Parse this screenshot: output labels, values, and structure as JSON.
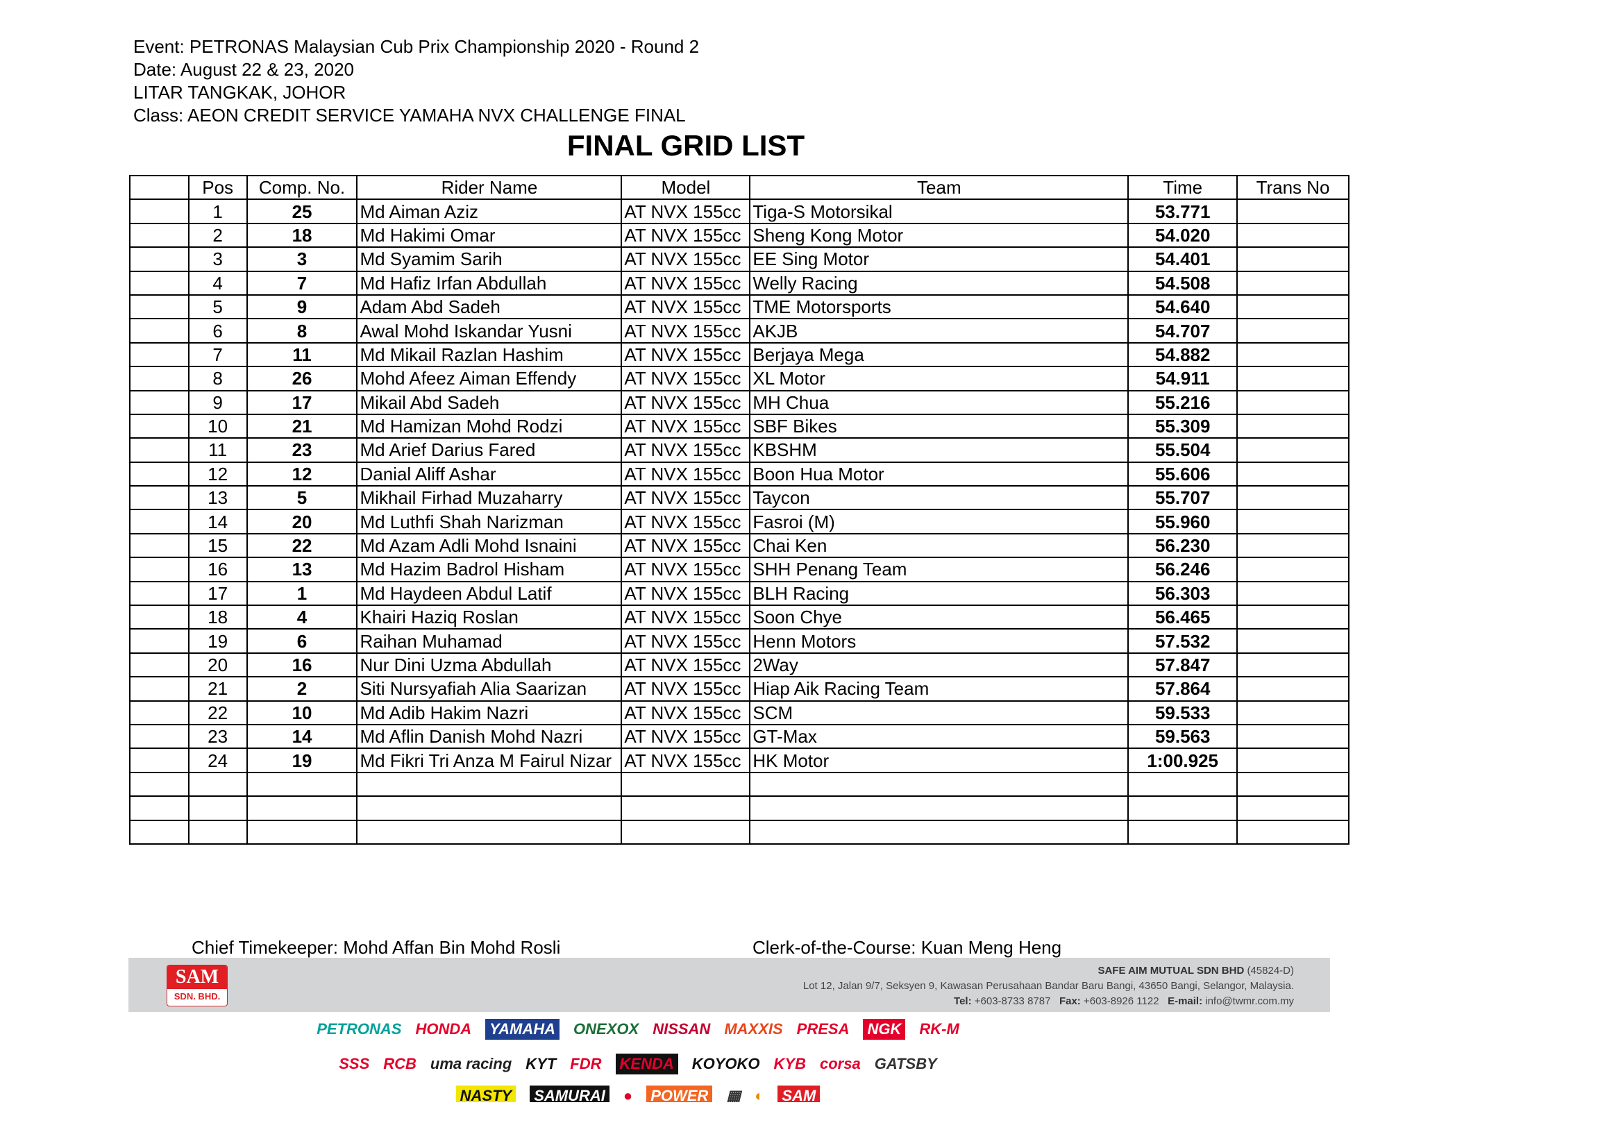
{
  "header": {
    "event": "Event: PETRONAS Malaysian Cub Prix Championship 2020 - Round 2",
    "date": "Date: August 22 & 23, 2020",
    "venue": "LITAR TANGKAK, JOHOR",
    "class": "Class: AEON CREDIT SERVICE YAMAHA NVX CHALLENGE FINAL",
    "title": "FINAL GRID LIST"
  },
  "table": {
    "columns": [
      "",
      "Pos",
      "Comp. No.",
      "Rider Name",
      "Model",
      "Team",
      "Time",
      "Trans No"
    ],
    "rows": [
      [
        "1",
        "25",
        "Md Aiman Aziz",
        "AT NVX 155cc",
        "Tiga-S Motorsikal",
        "53.771"
      ],
      [
        "2",
        "18",
        "Md Hakimi Omar",
        "AT NVX 155cc",
        "Sheng Kong Motor",
        "54.020"
      ],
      [
        "3",
        "3",
        "Md Syamim Sarih",
        "AT NVX 155cc",
        "EE Sing Motor",
        "54.401"
      ],
      [
        "4",
        "7",
        "Md Hafiz Irfan Abdullah",
        "AT NVX 155cc",
        "Welly Racing",
        "54.508"
      ],
      [
        "5",
        "9",
        "Adam Abd Sadeh",
        "AT NVX 155cc",
        "TME Motorsports",
        "54.640"
      ],
      [
        "6",
        "8",
        "Awal Mohd Iskandar Yusni",
        "AT NVX 155cc",
        "AKJB",
        "54.707"
      ],
      [
        "7",
        "11",
        "Md Mikail Razlan Hashim",
        "AT NVX 155cc",
        "Berjaya Mega",
        "54.882"
      ],
      [
        "8",
        "26",
        "Mohd Afeez Aiman Effendy",
        "AT NVX 155cc",
        "XL Motor",
        "54.911"
      ],
      [
        "9",
        "17",
        "Mikail Abd Sadeh",
        "AT NVX 155cc",
        "MH Chua",
        "55.216"
      ],
      [
        "10",
        "21",
        "Md Hamizan Mohd Rodzi",
        "AT NVX 155cc",
        "SBF Bikes",
        "55.309"
      ],
      [
        "11",
        "23",
        "Md Arief Darius Fared",
        "AT NVX 155cc",
        "KBSHM",
        "55.504"
      ],
      [
        "12",
        "12",
        "Danial Aliff Ashar",
        "AT NVX 155cc",
        "Boon Hua Motor",
        "55.606"
      ],
      [
        "13",
        "5",
        "Mikhail Firhad Muzaharry",
        "AT NVX 155cc",
        "Taycon",
        "55.707"
      ],
      [
        "14",
        "20",
        "Md Luthfi Shah Narizman",
        "AT NVX 155cc",
        "Fasroi (M)",
        "55.960"
      ],
      [
        "15",
        "22",
        "Md Azam Adli Mohd Isnaini",
        "AT NVX 155cc",
        "Chai Ken",
        "56.230"
      ],
      [
        "16",
        "13",
        "Md Hazim Badrol Hisham",
        "AT NVX 155cc",
        "SHH Penang Team",
        "56.246"
      ],
      [
        "17",
        "1",
        "Md Haydeen Abdul Latif",
        "AT NVX 155cc",
        "BLH Racing",
        "56.303"
      ],
      [
        "18",
        "4",
        "Khairi Haziq Roslan",
        "AT NVX 155cc",
        "Soon Chye",
        "56.465"
      ],
      [
        "19",
        "6",
        "Raihan Muhamad",
        "AT NVX 155cc",
        "Henn Motors",
        "57.532"
      ],
      [
        "20",
        "16",
        "Nur Dini Uzma Abdullah",
        "AT NVX 155cc",
        "2Way",
        "57.847"
      ],
      [
        "21",
        "2",
        "Siti Nursyafiah Alia Saarizan",
        "AT NVX 155cc",
        "Hiap Aik Racing Team",
        "57.864"
      ],
      [
        "22",
        "10",
        "Md Adib Hakim Nazri",
        "AT NVX 155cc",
        "SCM",
        "59.533"
      ],
      [
        "23",
        "14",
        "Md Aflin Danish Mohd Nazri",
        "AT NVX 155cc",
        "GT-Max",
        "59.563"
      ],
      [
        "24",
        "19",
        "Md Fikri Tri Anza M Fairul Nizar",
        "AT NVX 155cc",
        "HK Motor",
        "1:00.925"
      ]
    ],
    "empty_rows": 3
  },
  "signatures": {
    "timekeeper": "Chief Timekeeper: Mohd Affan Bin Mohd Rosli",
    "clerk": "Clerk-of-the-Course: Kuan Meng Heng"
  },
  "footer": {
    "logo_top": "SAM",
    "logo_bottom": "SDN. BHD.",
    "company": "SAFE AIM MUTUAL SDN BHD",
    "reg": "(45824-D)",
    "address": "Lot 12, Jalan 9/7, Seksyen 9, Kawasan Perusahaan Bandar Baru Bangi, 43650 Bangi, Selangor, Malaysia.",
    "tel_label": "Tel:",
    "tel": "+603-8733 8787",
    "fax_label": "Fax:",
    "fax": "+603-8926 1122",
    "email_label": "E-mail:",
    "email": "info@twmr.com.my"
  },
  "sponsors": {
    "row1": [
      {
        "name": "PETRONAS",
        "color": "#00a19c"
      },
      {
        "name": "HONDA",
        "color": "#e4002b"
      },
      {
        "name": "YAMAHA",
        "color": "#ffffff",
        "bg": "#1f3f8f"
      },
      {
        "name": "ONEXOX",
        "color": "#1a6e37"
      },
      {
        "name": "NISSAN",
        "color": "#c3002f"
      },
      {
        "name": "MAXXIS",
        "color": "#e8461b"
      },
      {
        "name": "PRESA",
        "color": "#e4002b"
      },
      {
        "name": "NGK",
        "color": "#ffffff",
        "bg": "#e4002b"
      },
      {
        "name": "RK-M",
        "color": "#e4002b"
      }
    ],
    "row2": [
      {
        "name": "SSS",
        "color": "#e4002b"
      },
      {
        "name": "RCB",
        "color": "#e4002b"
      },
      {
        "name": "uma racing",
        "color": "#222222"
      },
      {
        "name": "KYT",
        "color": "#111111"
      },
      {
        "name": "FDR",
        "color": "#e4002b"
      },
      {
        "name": "KENDA",
        "color": "#e4002b",
        "bg": "#111111"
      },
      {
        "name": "KOYOKO",
        "color": "#111111"
      },
      {
        "name": "KYB",
        "color": "#e4002b"
      },
      {
        "name": "corsa",
        "color": "#e4002b"
      },
      {
        "name": "GATSBY",
        "color": "#333333"
      }
    ],
    "row3": [
      {
        "name": "NASTY",
        "color": "#111111",
        "bg": "#f3e600"
      },
      {
        "name": "SAMURAI",
        "color": "#ffffff",
        "bg": "#111111"
      },
      {
        "name": "●",
        "color": "#e4002b"
      },
      {
        "name": "POWER",
        "color": "#ffffff",
        "bg": "#f26522"
      },
      {
        "name": "▦",
        "color": "#333333"
      },
      {
        "name": "◐",
        "color": "#e98a00"
      },
      {
        "name": "SAM",
        "color": "#ffffff",
        "bg": "#e01e24"
      }
    ]
  }
}
